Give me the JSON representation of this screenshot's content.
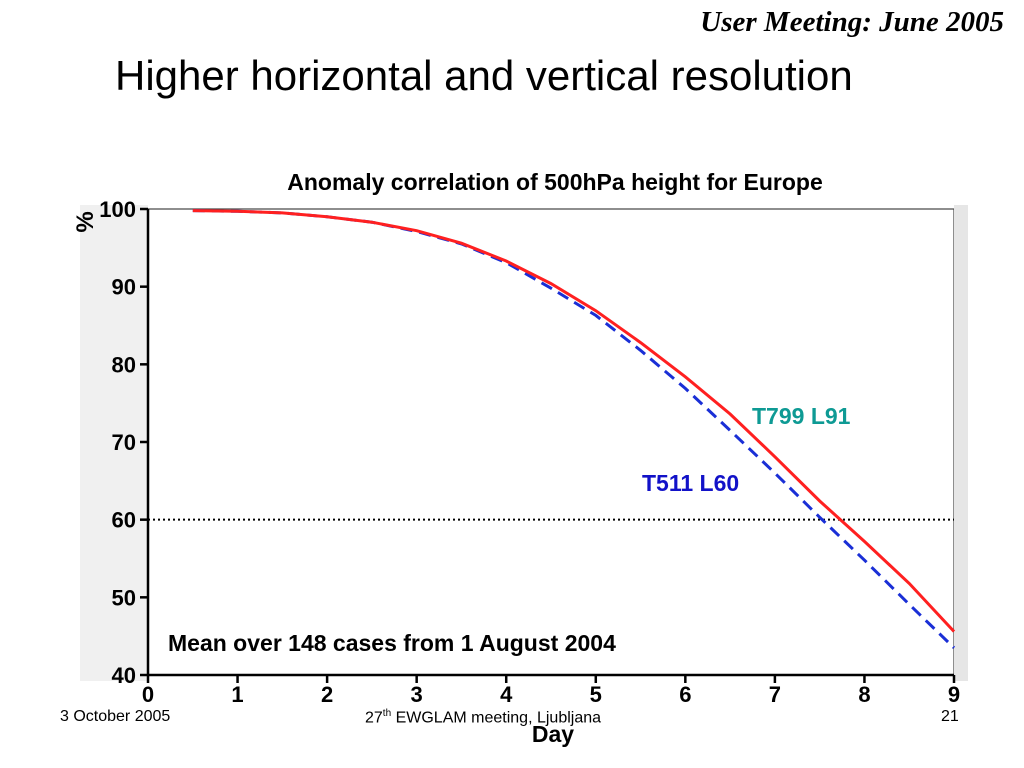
{
  "header": {
    "meeting": "User Meeting: June 2005",
    "title": "Higher horizontal and vertical resolution"
  },
  "footer": {
    "date": "3 October 2005",
    "event_ordinal": "27",
    "event_suffix": "th",
    "event_rest": " EWGLAM meeting, Ljubljana",
    "page": "21"
  },
  "colors": {
    "t799": "#ff2020",
    "t511": "#1a2fd6",
    "t799_label": "#0e9a94",
    "t511_label": "#1212c8",
    "reference": "#000000"
  },
  "chart_data": {
    "type": "line",
    "title": "Anomaly correlation of 500hPa height for Europe",
    "xlabel": "Day",
    "ylabel": "%",
    "xlim": [
      0,
      9
    ],
    "ylim": [
      40,
      100
    ],
    "xticks": [
      0,
      1,
      2,
      3,
      4,
      5,
      6,
      7,
      8,
      9
    ],
    "yticks": [
      40,
      50,
      60,
      70,
      80,
      90,
      100
    ],
    "grid": false,
    "reference_line": {
      "y": 60,
      "style": "dotted"
    },
    "annotation": "Mean over 148 cases from 1 August 2004",
    "series": [
      {
        "name": "T799 L91",
        "style": "solid",
        "x": [
          0.5,
          1,
          1.5,
          2,
          2.5,
          3,
          3.5,
          4,
          4.5,
          5,
          5.5,
          6,
          6.5,
          7,
          7.5,
          8,
          8.5,
          9
        ],
        "y": [
          99.8,
          99.7,
          99.5,
          99.0,
          98.3,
          97.2,
          95.6,
          93.3,
          90.4,
          86.9,
          82.8,
          78.4,
          73.6,
          68.1,
          62.4,
          57.2,
          51.8,
          45.6
        ]
      },
      {
        "name": "T511 L60",
        "style": "dashed",
        "x": [
          0.5,
          1,
          1.5,
          2,
          2.5,
          3,
          3.5,
          4,
          4.5,
          5,
          5.5,
          6,
          6.5,
          7,
          7.5,
          8,
          8.5,
          9
        ],
        "y": [
          99.8,
          99.7,
          99.5,
          99.0,
          98.3,
          97.1,
          95.5,
          93.1,
          89.8,
          86.3,
          81.8,
          76.9,
          71.5,
          66.0,
          60.3,
          54.8,
          49.1,
          43.5
        ]
      }
    ]
  }
}
